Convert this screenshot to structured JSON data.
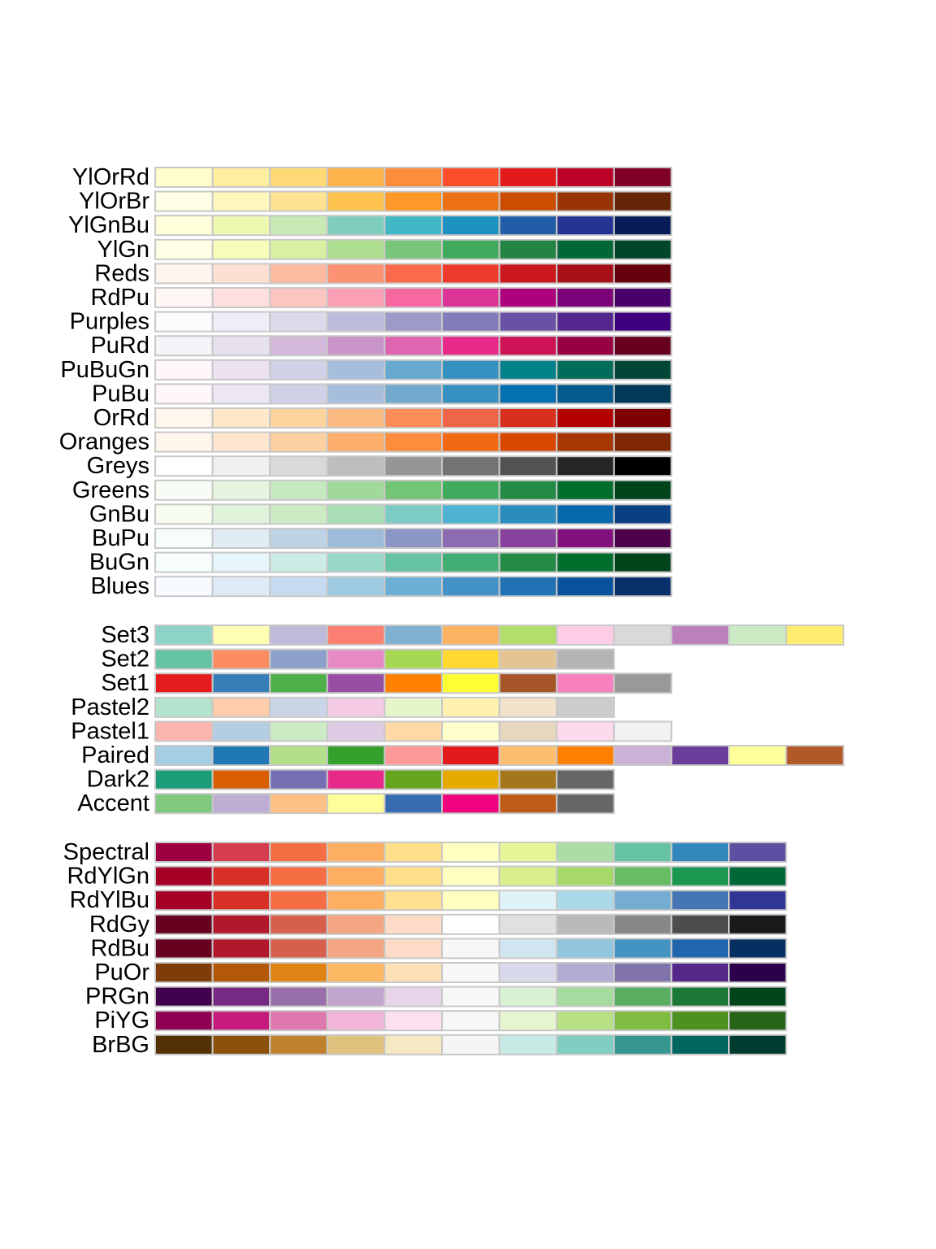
{
  "chart_data": {
    "type": "palette_swatches",
    "groups": [
      {
        "kind": "sequential",
        "palettes": [
          {
            "name": "YlOrRd",
            "colors": [
              "#FFFFCC",
              "#FFEDA0",
              "#FED976",
              "#FEB24C",
              "#FD8D3C",
              "#FC4E2A",
              "#E31A1C",
              "#BD0026",
              "#800026"
            ]
          },
          {
            "name": "YlOrBr",
            "colors": [
              "#FFFFE5",
              "#FFF7BC",
              "#FEE391",
              "#FEC44F",
              "#FE9929",
              "#EC7014",
              "#CC4C02",
              "#993404",
              "#662506"
            ]
          },
          {
            "name": "YlGnBu",
            "colors": [
              "#FFFFD9",
              "#EDF8B1",
              "#C7E9B4",
              "#7FCDBB",
              "#41B6C4",
              "#1D91C0",
              "#225EA8",
              "#253494",
              "#081D58"
            ]
          },
          {
            "name": "YlGn",
            "colors": [
              "#FFFFE5",
              "#F7FCB9",
              "#D9F0A3",
              "#ADDD8E",
              "#78C679",
              "#41AB5D",
              "#238443",
              "#006837",
              "#004529"
            ]
          },
          {
            "name": "Reds",
            "colors": [
              "#FFF5F0",
              "#FEE0D2",
              "#FCBBA1",
              "#FC9272",
              "#FB6A4A",
              "#EF3B2C",
              "#CB181D",
              "#A50F15",
              "#67000D"
            ]
          },
          {
            "name": "RdPu",
            "colors": [
              "#FFF7F3",
              "#FDE0DD",
              "#FCC5C0",
              "#FA9FB5",
              "#F768A1",
              "#DD3497",
              "#AE017E",
              "#7A0177",
              "#49006A"
            ]
          },
          {
            "name": "Purples",
            "colors": [
              "#FCFBFD",
              "#EFEDF5",
              "#DADAEB",
              "#BCBDDC",
              "#9E9AC8",
              "#807DBA",
              "#6A51A3",
              "#54278F",
              "#3F007D"
            ]
          },
          {
            "name": "PuRd",
            "colors": [
              "#F7F4F9",
              "#E7E1EF",
              "#D4B9DA",
              "#C994C7",
              "#DF65B0",
              "#E7298A",
              "#CE1256",
              "#980043",
              "#67001F"
            ]
          },
          {
            "name": "PuBuGn",
            "colors": [
              "#FFF7FB",
              "#ECE2F0",
              "#D0D1E6",
              "#A6BDDB",
              "#67A9CF",
              "#3690C0",
              "#02818A",
              "#016C59",
              "#014636"
            ]
          },
          {
            "name": "PuBu",
            "colors": [
              "#FFF7FB",
              "#ECE7F2",
              "#D0D1E6",
              "#A6BDDB",
              "#74A9CF",
              "#3690C0",
              "#0570B0",
              "#045A8D",
              "#023858"
            ]
          },
          {
            "name": "OrRd",
            "colors": [
              "#FFF7EC",
              "#FEE8C8",
              "#FDD49E",
              "#FDBB84",
              "#FC8D59",
              "#EF6548",
              "#D7301F",
              "#B30000",
              "#7F0000"
            ]
          },
          {
            "name": "Oranges",
            "colors": [
              "#FFF5EB",
              "#FEE6CE",
              "#FDD0A2",
              "#FDAE6B",
              "#FD8D3C",
              "#F16913",
              "#D94801",
              "#A63603",
              "#7F2704"
            ]
          },
          {
            "name": "Greys",
            "colors": [
              "#FFFFFF",
              "#F0F0F0",
              "#D9D9D9",
              "#BDBDBD",
              "#969696",
              "#737373",
              "#525252",
              "#252525",
              "#000000"
            ]
          },
          {
            "name": "Greens",
            "colors": [
              "#F7FCF5",
              "#E5F5E0",
              "#C7E9C0",
              "#A1D99B",
              "#74C476",
              "#41AB5D",
              "#238B45",
              "#006D2C",
              "#00441B"
            ]
          },
          {
            "name": "GnBu",
            "colors": [
              "#F7FCF0",
              "#E0F3DB",
              "#CCEBC5",
              "#A8DDB5",
              "#7BCCC4",
              "#4EB3D3",
              "#2B8CBE",
              "#0868AC",
              "#084081"
            ]
          },
          {
            "name": "BuPu",
            "colors": [
              "#F7FCFD",
              "#E0ECF4",
              "#BFD3E6",
              "#9EBCDA",
              "#8C96C6",
              "#8C6BB1",
              "#88419D",
              "#810F7C",
              "#4D004B"
            ]
          },
          {
            "name": "BuGn",
            "colors": [
              "#F7FCFD",
              "#E5F5F9",
              "#CCECE6",
              "#99D8C9",
              "#66C2A4",
              "#41AE76",
              "#238B45",
              "#006D2C",
              "#00441B"
            ]
          },
          {
            "name": "Blues",
            "colors": [
              "#F7FBFF",
              "#DEEBF7",
              "#C6DBEF",
              "#9ECAE1",
              "#6BAED6",
              "#4292C6",
              "#2171B5",
              "#08519C",
              "#08306B"
            ]
          }
        ]
      },
      {
        "kind": "qualitative",
        "palettes": [
          {
            "name": "Set3",
            "colors": [
              "#8DD3C7",
              "#FFFFB3",
              "#BEBADA",
              "#FB8072",
              "#80B1D3",
              "#FDB462",
              "#B3DE69",
              "#FCCDE5",
              "#D9D9D9",
              "#BC80BD",
              "#CCEBC5",
              "#FFED6F"
            ]
          },
          {
            "name": "Set2",
            "colors": [
              "#66C2A5",
              "#FC8D62",
              "#8DA0CB",
              "#E78AC3",
              "#A6D854",
              "#FFD92F",
              "#E5C494",
              "#B3B3B3"
            ]
          },
          {
            "name": "Set1",
            "colors": [
              "#E41A1C",
              "#377EB8",
              "#4DAF4A",
              "#984EA3",
              "#FF7F00",
              "#FFFF33",
              "#A65628",
              "#F781BF",
              "#999999"
            ]
          },
          {
            "name": "Pastel2",
            "colors": [
              "#B3E2CD",
              "#FDCDAC",
              "#CBD5E8",
              "#F4CAE4",
              "#E6F5C9",
              "#FFF2AE",
              "#F1E2CC",
              "#CCCCCC"
            ]
          },
          {
            "name": "Pastel1",
            "colors": [
              "#FBB4AE",
              "#B3CDE3",
              "#CCEBC5",
              "#DECBE4",
              "#FED9A6",
              "#FFFFCC",
              "#E5D8BD",
              "#FDDAEC",
              "#F2F2F2"
            ]
          },
          {
            "name": "Paired",
            "colors": [
              "#A6CEE3",
              "#1F78B4",
              "#B2DF8A",
              "#33A02C",
              "#FB9A99",
              "#E31A1C",
              "#FDBF6F",
              "#FF7F00",
              "#CAB2D6",
              "#6A3D9A",
              "#FFFF99",
              "#B15928"
            ]
          },
          {
            "name": "Dark2",
            "colors": [
              "#1B9E77",
              "#D95F02",
              "#7570B3",
              "#E7298A",
              "#66A61E",
              "#E6AB02",
              "#A6761D",
              "#666666"
            ]
          },
          {
            "name": "Accent",
            "colors": [
              "#7FC97F",
              "#BEAED4",
              "#FDC086",
              "#FFFF99",
              "#386CB0",
              "#F0027F",
              "#BF5B17",
              "#666666"
            ]
          }
        ]
      },
      {
        "kind": "diverging",
        "palettes": [
          {
            "name": "Spectral",
            "colors": [
              "#9E0142",
              "#D53E4F",
              "#F46D43",
              "#FDAE61",
              "#FEE08B",
              "#FFFFBF",
              "#E6F598",
              "#ABDDA4",
              "#66C2A5",
              "#3288BD",
              "#5E4FA2"
            ]
          },
          {
            "name": "RdYlGn",
            "colors": [
              "#A50026",
              "#D73027",
              "#F46D43",
              "#FDAE61",
              "#FEE08B",
              "#FFFFBF",
              "#D9EF8B",
              "#A6D96A",
              "#66BD63",
              "#1A9850",
              "#006837"
            ]
          },
          {
            "name": "RdYlBu",
            "colors": [
              "#A50026",
              "#D73027",
              "#F46D43",
              "#FDAE61",
              "#FEE090",
              "#FFFFBF",
              "#E0F3F8",
              "#ABD9E9",
              "#74ADD1",
              "#4575B4",
              "#313695"
            ]
          },
          {
            "name": "RdGy",
            "colors": [
              "#67001F",
              "#B2182B",
              "#D6604D",
              "#F4A582",
              "#FDDBC7",
              "#FFFFFF",
              "#E0E0E0",
              "#BABABA",
              "#878787",
              "#4D4D4D",
              "#1A1A1A"
            ]
          },
          {
            "name": "RdBu",
            "colors": [
              "#67001F",
              "#B2182B",
              "#D6604D",
              "#F4A582",
              "#FDDBC7",
              "#F7F7F7",
              "#D1E5F0",
              "#92C5DE",
              "#4393C3",
              "#2166AC",
              "#053061"
            ]
          },
          {
            "name": "PuOr",
            "colors": [
              "#7F3B08",
              "#B35806",
              "#E08214",
              "#FDB863",
              "#FEE0B6",
              "#F7F7F7",
              "#D8DAEB",
              "#B2ABD2",
              "#8073AC",
              "#542788",
              "#2D004B"
            ]
          },
          {
            "name": "PRGn",
            "colors": [
              "#40004B",
              "#762A83",
              "#9970AB",
              "#C2A5CF",
              "#E7D4E8",
              "#F7F7F7",
              "#D9F0D3",
              "#A6DBA0",
              "#5AAE61",
              "#1B7837",
              "#00441B"
            ]
          },
          {
            "name": "PiYG",
            "colors": [
              "#8E0152",
              "#C51B7D",
              "#DE77AE",
              "#F1B6DA",
              "#FDE0EF",
              "#F7F7F7",
              "#E6F5D0",
              "#B8E186",
              "#7FBC41",
              "#4D9221",
              "#276419"
            ]
          },
          {
            "name": "BrBG",
            "colors": [
              "#543005",
              "#8C510A",
              "#BF812D",
              "#DFC27D",
              "#F6E8C3",
              "#F5F5F5",
              "#C7EAE5",
              "#80CDC1",
              "#35978F",
              "#01665E",
              "#003C30"
            ]
          }
        ]
      }
    ]
  }
}
